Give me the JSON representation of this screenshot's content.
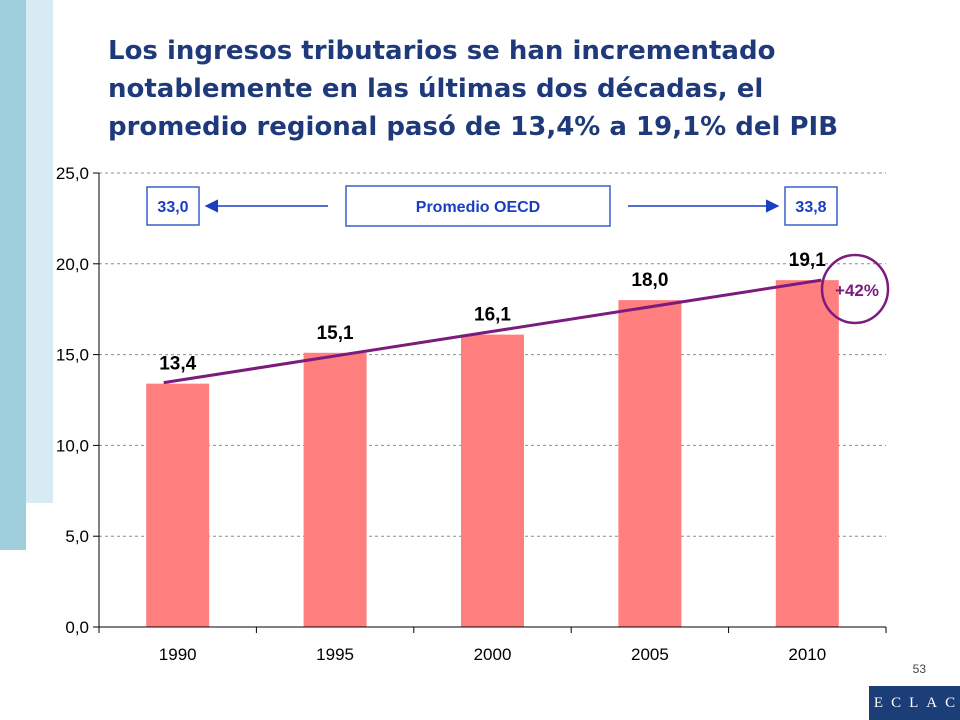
{
  "title": {
    "lines": [
      "Los ingresos tributarios se han incrementado",
      "notablemente en las últimas dos décadas, el",
      "promedio regional pasó de 13,4% a 19,1% del PIB"
    ]
  },
  "chart_data": {
    "type": "bar",
    "categories": [
      "1990",
      "1995",
      "2000",
      "2005",
      "2010"
    ],
    "values": [
      13.4,
      15.1,
      16.1,
      18.0,
      19.1
    ],
    "value_labels": [
      "13,4",
      "15,1",
      "16,1",
      "18,0",
      "19,1"
    ],
    "ylim": [
      0,
      25
    ],
    "y_ticks": [
      0,
      5,
      10,
      15,
      20,
      25
    ],
    "y_tick_labels": [
      "0,0",
      "5,0",
      "10,0",
      "15,0",
      "20,0",
      "25,0"
    ],
    "grid": true,
    "trend_line": {
      "from_category": "1990",
      "to_category": "2010",
      "from_value": 13.4,
      "to_value": 19.1
    },
    "growth_label": "+42%",
    "oecd": {
      "label": "Promedio OECD",
      "start_value": "33,0",
      "end_value": "33,8"
    },
    "colors": {
      "bar": "#ff7f7f",
      "trend": "#7b1c7d",
      "axis_text": "#000000",
      "oecd_border": "#3a5fc8",
      "oecd_text": "#1a3ec2",
      "oecd_arrow": "#1a3ec2"
    }
  },
  "page_number": "53",
  "logo": {
    "text": "ECLAC"
  }
}
